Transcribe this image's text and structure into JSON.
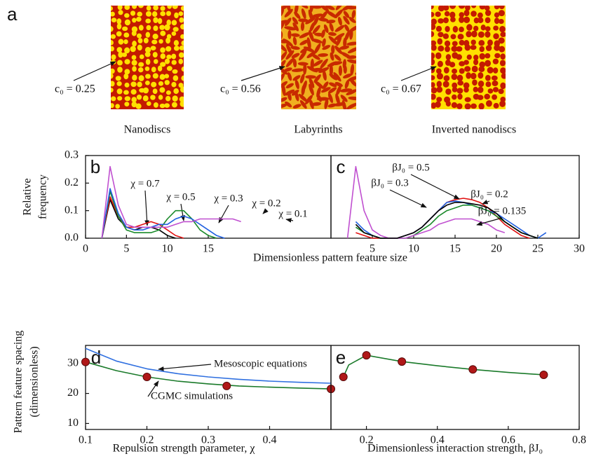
{
  "panel_a": {
    "label": "a",
    "images": [
      {
        "parameter": "c₀ = 0.25",
        "caption": "Nanodiscs"
      },
      {
        "parameter": "c₀ = 0.56",
        "caption": "Labyrinths"
      },
      {
        "parameter": "c₀ = 0.67",
        "caption": "Inverted nanodiscs"
      }
    ]
  },
  "chart_data": [
    {
      "type": "line",
      "label": "b",
      "ylabel": [
        "Relative",
        "frequency"
      ],
      "xlabel": "Dimensionless pattern feature size",
      "xlim": [
        0,
        30
      ],
      "xticks": [
        0,
        5,
        10,
        15
      ],
      "ylim": [
        0,
        0.3
      ],
      "yticks": [
        {
          "value": 0,
          "label": "0.0"
        },
        0.1,
        0.2,
        0.3
      ],
      "x": [
        2,
        3,
        4,
        5,
        6,
        7,
        8,
        9,
        10,
        11,
        12,
        13,
        14,
        15,
        16,
        17,
        18,
        19
      ],
      "series": [
        {
          "name": "χ = 0.7",
          "color": "#000000",
          "values": [
            0,
            0.14,
            0.07,
            0.04,
            0.03,
            0.04,
            0.04,
            0.03,
            0.01,
            0,
            null,
            null,
            null,
            null,
            null,
            null,
            null,
            null
          ]
        },
        {
          "name": "χ = 0.5",
          "color": "#e01010",
          "values": [
            0,
            0.15,
            0.08,
            0.04,
            0.04,
            0.05,
            0.06,
            0.05,
            0.03,
            0.01,
            0,
            null,
            null,
            null,
            null,
            null,
            null,
            null
          ]
        },
        {
          "name": "χ = 0.3",
          "color": "#1a8a2a",
          "values": [
            0,
            0.17,
            0.08,
            0.03,
            0.02,
            0.02,
            0.02,
            0.03,
            0.07,
            0.1,
            0.1,
            0.07,
            0.03,
            0.01,
            0,
            null,
            null,
            null
          ]
        },
        {
          "name": "χ = 0.2",
          "color": "#2060e0",
          "values": [
            0,
            0.18,
            0.09,
            0.04,
            0.03,
            0.03,
            0.04,
            0.05,
            0.05,
            0.07,
            0.08,
            0.07,
            0.05,
            0.03,
            0.01,
            0,
            null,
            null
          ]
        },
        {
          "name": "χ = 0.1",
          "color": "#c050d0",
          "values": [
            0,
            0.26,
            0.12,
            0.05,
            0.04,
            0.04,
            0.04,
            0.04,
            0.04,
            0.05,
            0.06,
            0.06,
            0.07,
            0.07,
            0.07,
            0.07,
            0.07,
            0.06
          ]
        }
      ]
    },
    {
      "type": "line",
      "label": "c",
      "xlim": [
        0,
        30
      ],
      "xticks": [
        5,
        10,
        15,
        20,
        25,
        30
      ],
      "ylim": [
        0,
        0.3
      ],
      "x": [
        2,
        3,
        4,
        5,
        6,
        7,
        8,
        9,
        10,
        11,
        12,
        13,
        14,
        15,
        16,
        17,
        18,
        19,
        20,
        21,
        22,
        23,
        24,
        25,
        26
      ],
      "series": [
        {
          "name": "βJ₀ = 0.5",
          "color": "#e01010",
          "values": [
            null,
            0.02,
            0.01,
            0,
            0,
            0,
            0,
            0.01,
            0.02,
            0.04,
            0.07,
            0.1,
            0.13,
            0.14,
            0.145,
            0.14,
            0.13,
            0.11,
            0.08,
            0.05,
            0.03,
            0.01,
            0,
            null,
            null
          ]
        },
        {
          "name": "βJ₀ = 0.3",
          "color": "#2060e0",
          "values": [
            null,
            0.06,
            0.03,
            0.01,
            0,
            0,
            0,
            0.01,
            0.02,
            0.04,
            0.07,
            0.1,
            0.13,
            0.135,
            0.13,
            0.12,
            0.11,
            0.1,
            0.09,
            0.07,
            0.05,
            0.03,
            0.01,
            0,
            0.02
          ]
        },
        {
          "name": "βJ₀ = 0.2",
          "color": "#1a8a2a",
          "values": [
            null,
            0.04,
            0.02,
            0.01,
            0,
            0,
            0,
            0,
            0.01,
            0.03,
            0.05,
            0.08,
            0.1,
            0.11,
            0.12,
            0.12,
            0.11,
            0.1,
            0.08,
            0.06,
            0.04,
            0.02,
            0.01,
            0,
            null
          ]
        },
        {
          "name": "βJ₀ = 0.135",
          "color": "#c050d0",
          "values": [
            0,
            0.26,
            0.1,
            0.03,
            0.01,
            0,
            0,
            0,
            0.01,
            0.02,
            0.03,
            0.05,
            0.06,
            0.07,
            0.07,
            0.07,
            0.06,
            0.05,
            0.03,
            0.02,
            null,
            null,
            null,
            null,
            null
          ]
        },
        {
          "color": "#000000",
          "values": [
            null,
            0.05,
            0.02,
            0.01,
            0,
            0,
            0,
            0.01,
            0.02,
            0.04,
            0.07,
            0.1,
            0.12,
            0.13,
            0.13,
            0.125,
            0.12,
            0.11,
            0.09,
            0.06,
            0.04,
            0.02,
            0.01,
            0,
            null
          ]
        }
      ]
    },
    {
      "type": "line",
      "label": "d",
      "ylabel": [
        "Pattern feature spacing",
        "(dimensionless)"
      ],
      "xlabel": "Repulsion strength parameter, χ",
      "xlim": [
        0.1,
        0.5
      ],
      "xticks": [
        0.1,
        0.2,
        0.3,
        0.4
      ],
      "ylim": [
        8,
        36
      ],
      "yticks": [
        10,
        20,
        30
      ],
      "series": [
        {
          "name": "Mesoscopic equations",
          "color": "#3070e0",
          "style": "line",
          "x": [
            0.1,
            0.15,
            0.2,
            0.25,
            0.3,
            0.35,
            0.4,
            0.45,
            0.5
          ],
          "values": [
            35,
            30.8,
            28.2,
            26.6,
            25.5,
            24.7,
            24.1,
            23.7,
            23.4
          ]
        },
        {
          "name": "CGMC simulations",
          "color": "#1a7a2a",
          "style": "line",
          "x": [
            0.1,
            0.15,
            0.2,
            0.25,
            0.3,
            0.35,
            0.4,
            0.45,
            0.5
          ],
          "values": [
            30.5,
            27.6,
            25.5,
            24.1,
            23.2,
            22.5,
            22.1,
            21.8,
            21.5
          ]
        },
        {
          "color": "#b01818",
          "style": "markers",
          "x": [
            0.1,
            0.2,
            0.33,
            0.5
          ],
          "values": [
            30.5,
            25.5,
            22.5,
            21.5
          ]
        }
      ]
    },
    {
      "type": "line",
      "label": "e",
      "xlabel": "Dimensionless interaction strength, βJ₀",
      "xlim": [
        0.1,
        0.8
      ],
      "xticks": [
        0.2,
        0.4,
        0.6,
        0.8
      ],
      "ylim": [
        8,
        36
      ],
      "series": [
        {
          "color": "#1a7a2a",
          "style": "line",
          "x": [
            0.135,
            0.15,
            0.2,
            0.3,
            0.4,
            0.5,
            0.6,
            0.7
          ],
          "values": [
            25.5,
            29.5,
            32.7,
            30.6,
            29.2,
            28,
            27,
            26.2
          ]
        },
        {
          "color": "#b01818",
          "style": "markers",
          "x": [
            0.135,
            0.2,
            0.3,
            0.5,
            0.7
          ],
          "values": [
            25.5,
            32.7,
            30.6,
            28,
            26.2
          ]
        }
      ]
    }
  ]
}
